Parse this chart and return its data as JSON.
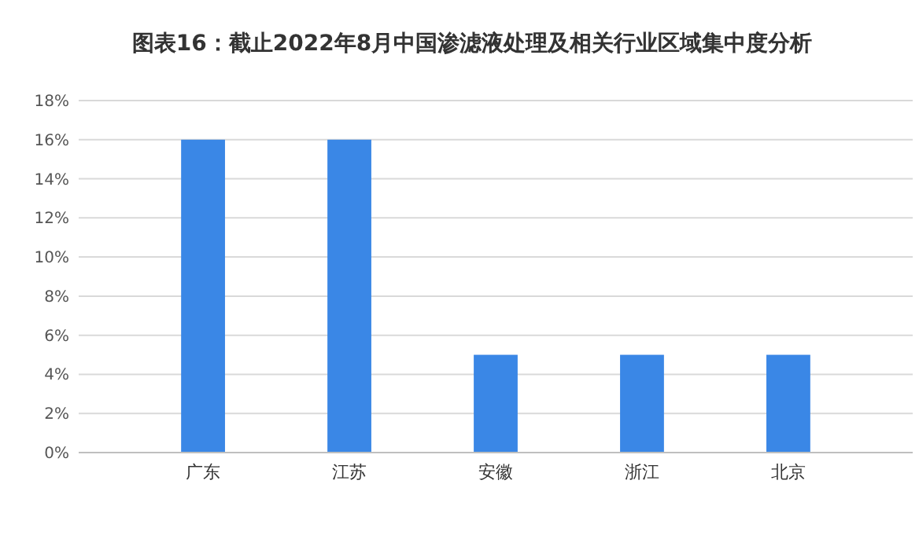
{
  "chart_data": {
    "type": "bar",
    "title": "图表16：截止2022年8月中国渗滤液处理及相关行业区域集中度分析",
    "categories": [
      "广东",
      "江苏",
      "安徽",
      "浙江",
      "北京"
    ],
    "values": [
      16,
      16,
      5,
      5,
      5
    ],
    "color": "#3a87e6",
    "ylim": [
      0,
      18
    ],
    "yticks": [
      {
        "value": 0,
        "label": "0%"
      },
      {
        "value": 2,
        "label": "2%"
      },
      {
        "value": 4,
        "label": "4%"
      },
      {
        "value": 6,
        "label": "6%"
      },
      {
        "value": 8,
        "label": "8%"
      },
      {
        "value": 10,
        "label": "10%"
      },
      {
        "value": 12,
        "label": "12%"
      },
      {
        "value": 14,
        "label": "14%"
      },
      {
        "value": 16,
        "label": "16%"
      },
      {
        "value": 18,
        "label": "18%"
      }
    ],
    "grid": "y"
  }
}
